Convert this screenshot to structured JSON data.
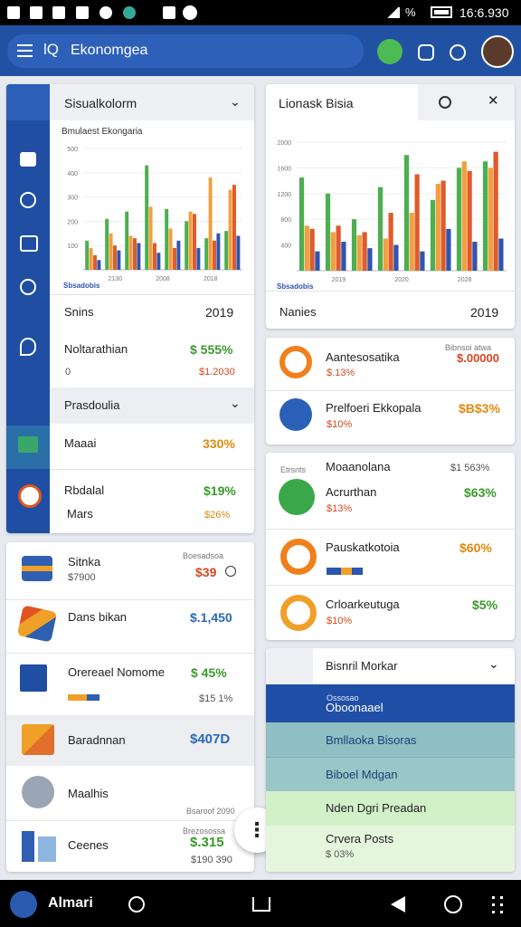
{
  "status_bar": {
    "battery": "%",
    "time": "16:6.930"
  },
  "app_bar": {
    "logo": "lQ",
    "title": "Ekonomgea"
  },
  "left_card": {
    "title": "Sisualkolorm",
    "chart": {
      "type": "bar",
      "title": "Bmulaest Ekongaria",
      "ylim": [
        0,
        500
      ],
      "yticks": [
        100,
        200,
        300,
        400,
        500
      ],
      "x_labels": [
        "2130",
        "2008",
        "2018"
      ],
      "legend_label": "Sbsadobis",
      "series": [
        {
          "color": "#4caf50",
          "values": [
            120,
            210,
            240,
            430,
            250,
            200,
            130,
            160
          ]
        },
        {
          "color": "#f0a040",
          "values": [
            90,
            150,
            140,
            260,
            170,
            240,
            380,
            330
          ]
        },
        {
          "color": "#e05a2b",
          "values": [
            60,
            100,
            130,
            110,
            90,
            230,
            120,
            350
          ]
        },
        {
          "color": "#2f55b0",
          "values": [
            40,
            80,
            110,
            70,
            120,
            90,
            150,
            140
          ]
        }
      ]
    },
    "summary": {
      "label": "Snins",
      "value": "2019"
    },
    "item": {
      "label": "Noltarathian",
      "value": "$ 555%",
      "sub_label": "0",
      "sub_value": "$1.2030"
    },
    "section": {
      "title": "Prasdoulia",
      "rows": [
        {
          "label": "Maaai",
          "value": "330%"
        },
        {
          "label": "Rbdalal",
          "value": "$19%"
        },
        {
          "label": "Mars",
          "value": "$26%"
        }
      ]
    }
  },
  "right_card": {
    "title": "Lionask Bisia",
    "chart": {
      "type": "bar",
      "ylim": [
        0,
        2000
      ],
      "yticks": [
        400,
        800,
        1200,
        1600,
        2000
      ],
      "x_labels": [
        "2019",
        "2020",
        "2028"
      ],
      "legend_label": "Sbsadobis",
      "series": [
        {
          "color": "#4caf50",
          "values": [
            1450,
            1200,
            800,
            1300,
            1800,
            1100,
            1600,
            1700
          ]
        },
        {
          "color": "#f0a040",
          "values": [
            700,
            600,
            550,
            500,
            900,
            1350,
            1700,
            1600
          ]
        },
        {
          "color": "#e05a2b",
          "values": [
            650,
            700,
            600,
            900,
            1500,
            1400,
            1550,
            1850
          ]
        },
        {
          "color": "#2f55b0",
          "values": [
            300,
            450,
            350,
            400,
            300,
            650,
            450,
            500
          ]
        }
      ]
    },
    "summary": {
      "label": "Nanies",
      "value": "2019"
    }
  },
  "stats_card": {
    "note": "Bibnsoi atwa",
    "rows": [
      {
        "label": "Aantesosatika",
        "sub": "$.13%",
        "value": "$.00000"
      },
      {
        "label": "Prelfoeri Ekkopala",
        "sub": "$10%",
        "value": "$B$3%"
      }
    ]
  },
  "trends_card": {
    "tag": "Etrsnts",
    "title": "Moaanolana",
    "title_value": "$1 563%",
    "rows": [
      {
        "label": "Acrurthan",
        "sub": "$13%",
        "value": "$63%"
      },
      {
        "label": "Pauskatkotoia",
        "value": "$60%"
      },
      {
        "label": "Crloarkeutuga",
        "sub": "$10%",
        "value": "$5%"
      }
    ]
  },
  "list_card": {
    "rows": [
      {
        "label": "Sitnka",
        "sub": "$7900",
        "value": "$39",
        "note": "Boesadsoa"
      },
      {
        "label": "Dans bikan",
        "value": "$.1,450"
      },
      {
        "label": "Orereael Nomome",
        "value": "$ 45%",
        "sub_value": "$15 1%"
      },
      {
        "label": "Baradnnan",
        "value": "$407D"
      },
      {
        "label": "Maalhis",
        "note": "Bsaroof 2090"
      },
      {
        "label": "Ceenes",
        "value": "$.315",
        "sub_value": "$190 390",
        "note": "Brezosossa"
      }
    ]
  },
  "market_card": {
    "title": "Bisnril Morkar",
    "rows": [
      {
        "tag": "Ossosao",
        "label": "Oboonaael"
      },
      {
        "label": "Bmllaoka Bisoras"
      },
      {
        "label": "Biboel Mdgan"
      },
      {
        "label": "Nden Dgri Preadan"
      },
      {
        "label": "Crvera Posts",
        "sub": "$ 03%"
      }
    ]
  },
  "bottom_nav": {
    "app": "Almari"
  }
}
